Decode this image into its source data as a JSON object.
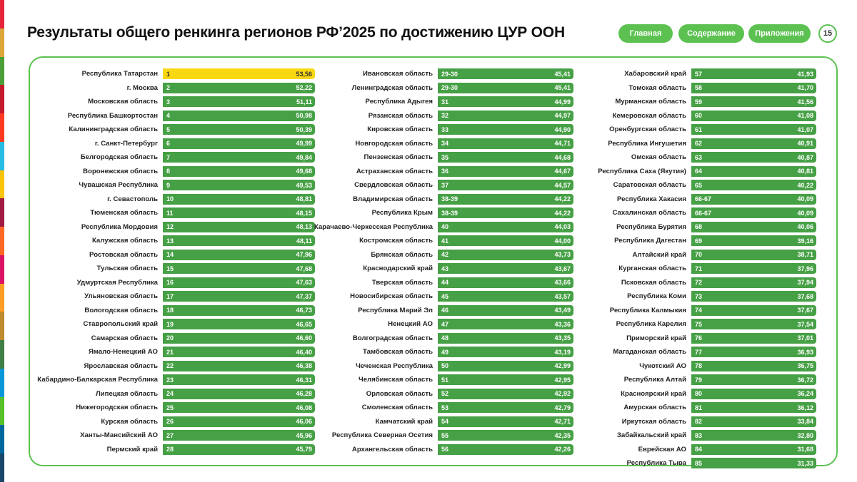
{
  "header": {
    "title": "Результаты общего ренкинга регионов РФ’2025 по достижению ЦУР ООН",
    "page_number": "15"
  },
  "nav": {
    "home": "Главная",
    "contents": "Содержание",
    "appendix": "Приложения"
  },
  "colors": {
    "accent": "#5cc151",
    "bar": "#46a045",
    "bar_highlight": "#f9d812",
    "stripe": [
      "#e5243b",
      "#dda63a",
      "#4c9f38",
      "#c5192d",
      "#ff3a21",
      "#26bde2",
      "#fcc30b",
      "#a21942",
      "#fd6925",
      "#dd1367",
      "#fd9d24",
      "#bf8b2e",
      "#3f7e44",
      "#0a97d9",
      "#56c02b",
      "#00689d",
      "#19486a"
    ]
  },
  "ranking": {
    "columns": [
      [
        {
          "region": "Республика Татарстан",
          "rank": "1",
          "score": "53,56"
        },
        {
          "region": "г. Москва",
          "rank": "2",
          "score": "52,22"
        },
        {
          "region": "Московская область",
          "rank": "3",
          "score": "51,11"
        },
        {
          "region": "Республика Башкортостан",
          "rank": "4",
          "score": "50,98"
        },
        {
          "region": "Калининградская область",
          "rank": "5",
          "score": "50,39"
        },
        {
          "region": "г. Санкт-Петербург",
          "rank": "6",
          "score": "49,99"
        },
        {
          "region": "Белгородская область",
          "rank": "7",
          "score": "49,84"
        },
        {
          "region": "Воронежская область",
          "rank": "8",
          "score": "49,68"
        },
        {
          "region": "Чувашская Республика",
          "rank": "9",
          "score": "49,53"
        },
        {
          "region": "г. Севастополь",
          "rank": "10",
          "score": "48,81"
        },
        {
          "region": "Тюменская область",
          "rank": "11",
          "score": "48,15"
        },
        {
          "region": "Республика Мордовия",
          "rank": "12",
          "score": "48,13"
        },
        {
          "region": "Калужская область",
          "rank": "13",
          "score": "48,11"
        },
        {
          "region": "Ростовская область",
          "rank": "14",
          "score": "47,96"
        },
        {
          "region": "Тульская область",
          "rank": "15",
          "score": "47,68"
        },
        {
          "region": "Удмуртская Республика",
          "rank": "16",
          "score": "47,63"
        },
        {
          "region": "Ульяновская область",
          "rank": "17",
          "score": "47,37"
        },
        {
          "region": "Вологодская область",
          "rank": "18",
          "score": "46,73"
        },
        {
          "region": "Ставропольский край",
          "rank": "19",
          "score": "46,65"
        },
        {
          "region": "Самарская область",
          "rank": "20",
          "score": "46,60"
        },
        {
          "region": "Ямало-Ненецкий АО",
          "rank": "21",
          "score": "46,40"
        },
        {
          "region": "Ярославская область",
          "rank": "22",
          "score": "46,38"
        },
        {
          "region": "Кабардино-Балкарская Республика",
          "rank": "23",
          "score": "46,31"
        },
        {
          "region": "Липецкая область",
          "rank": "24",
          "score": "46,28"
        },
        {
          "region": "Нижегородская область",
          "rank": "25",
          "score": "46,08"
        },
        {
          "region": "Курская область",
          "rank": "26",
          "score": "46,06"
        },
        {
          "region": "Ханты-Мансийский АО",
          "rank": "27",
          "score": "45,96"
        },
        {
          "region": "Пермский край",
          "rank": "28",
          "score": "45,79"
        }
      ],
      [
        {
          "region": "Ивановская область",
          "rank": "29-30",
          "score": "45,41"
        },
        {
          "region": "Ленинградская область",
          "rank": "29-30",
          "score": "45,41"
        },
        {
          "region": "Республика Адыгея",
          "rank": "31",
          "score": "44,99"
        },
        {
          "region": "Рязанская область",
          "rank": "32",
          "score": "44,97"
        },
        {
          "region": "Кировская область",
          "rank": "33",
          "score": "44,90"
        },
        {
          "region": "Новгородская область",
          "rank": "34",
          "score": "44,71"
        },
        {
          "region": "Пензенская область",
          "rank": "35",
          "score": "44,68"
        },
        {
          "region": "Астраханская область",
          "rank": "36",
          "score": "44,67"
        },
        {
          "region": "Свердловская область",
          "rank": "37",
          "score": "44,57"
        },
        {
          "region": "Владимирская область",
          "rank": "38-39",
          "score": "44,22"
        },
        {
          "region": "Республика Крым",
          "rank": "38-39",
          "score": "44,22"
        },
        {
          "region": "Карачаево-Черкесская Республика",
          "rank": "40",
          "score": "44,03"
        },
        {
          "region": "Костромская область",
          "rank": "41",
          "score": "44,00"
        },
        {
          "region": "Брянская область",
          "rank": "42",
          "score": "43,73"
        },
        {
          "region": "Краснодарский край",
          "rank": "43",
          "score": "43,67"
        },
        {
          "region": "Тверская область",
          "rank": "44",
          "score": "43,66"
        },
        {
          "region": "Новосибирская область",
          "rank": "45",
          "score": "43,57"
        },
        {
          "region": "Республика Марий Эл",
          "rank": "46",
          "score": "43,49"
        },
        {
          "region": "Ненецкий АО",
          "rank": "47",
          "score": "43,36"
        },
        {
          "region": "Волгоградская область",
          "rank": "48",
          "score": "43,35"
        },
        {
          "region": "Тамбовская область",
          "rank": "49",
          "score": "43,19"
        },
        {
          "region": "Чеченская Республика",
          "rank": "50",
          "score": "42,99"
        },
        {
          "region": "Челябинская область",
          "rank": "51",
          "score": "42,95"
        },
        {
          "region": "Орловская область",
          "rank": "52",
          "score": "42,92"
        },
        {
          "region": "Смоленская область",
          "rank": "53",
          "score": "42,79"
        },
        {
          "region": "Камчатский край",
          "rank": "54",
          "score": "42,71"
        },
        {
          "region": "Республика Северная Осетия",
          "rank": "55",
          "score": "42,35"
        },
        {
          "region": "Архангельская область",
          "rank": "56",
          "score": "42,26"
        }
      ],
      [
        {
          "region": "Хабаровский край",
          "rank": "57",
          "score": "41,93"
        },
        {
          "region": "Томская область",
          "rank": "58",
          "score": "41,70"
        },
        {
          "region": "Мурманская область",
          "rank": "59",
          "score": "41,56"
        },
        {
          "region": "Кемеровская область",
          "rank": "60",
          "score": "41,08"
        },
        {
          "region": "Оренбургская область",
          "rank": "61",
          "score": "41,07"
        },
        {
          "region": "Республика Ингушетия",
          "rank": "62",
          "score": "40,91"
        },
        {
          "region": "Омская область",
          "rank": "63",
          "score": "40,87"
        },
        {
          "region": "Республика Саха (Якутия)",
          "rank": "64",
          "score": "40,81"
        },
        {
          "region": "Саратовская область",
          "rank": "65",
          "score": "40,22"
        },
        {
          "region": "Республика Хакасия",
          "rank": "66-67",
          "score": "40,09"
        },
        {
          "region": "Сахалинская область",
          "rank": "66-67",
          "score": "40,09"
        },
        {
          "region": "Республика Бурятия",
          "rank": "68",
          "score": "40,06"
        },
        {
          "region": "Республика Дагестан",
          "rank": "69",
          "score": "39,16"
        },
        {
          "region": "Алтайский край",
          "rank": "70",
          "score": "38,71"
        },
        {
          "region": "Курганская область",
          "rank": "71",
          "score": "37,96"
        },
        {
          "region": "Псковская область",
          "rank": "72",
          "score": "37,94"
        },
        {
          "region": "Республика Коми",
          "rank": "73",
          "score": "37,68"
        },
        {
          "region": "Республика Калмыкия",
          "rank": "74",
          "score": "37,67"
        },
        {
          "region": "Республика Карелия",
          "rank": "75",
          "score": "37,54"
        },
        {
          "region": "Приморский край",
          "rank": "76",
          "score": "37,01"
        },
        {
          "region": "Магаданская область",
          "rank": "77",
          "score": "36,93"
        },
        {
          "region": "Чукотский АО",
          "rank": "78",
          "score": "36,75"
        },
        {
          "region": "Республика Алтай",
          "rank": "79",
          "score": "36,72"
        },
        {
          "region": "Красноярский край",
          "rank": "80",
          "score": "36,24"
        },
        {
          "region": "Амурская область",
          "rank": "81",
          "score": "36,12"
        },
        {
          "region": "Иркутская область",
          "rank": "82",
          "score": "33,84"
        },
        {
          "region": "Забайкальский край",
          "rank": "83",
          "score": "32,80"
        },
        {
          "region": "Еврейская АО",
          "rank": "84",
          "score": "31,68"
        },
        {
          "region": "Республика Тыва",
          "rank": "85",
          "score": "31,33"
        }
      ]
    ]
  }
}
